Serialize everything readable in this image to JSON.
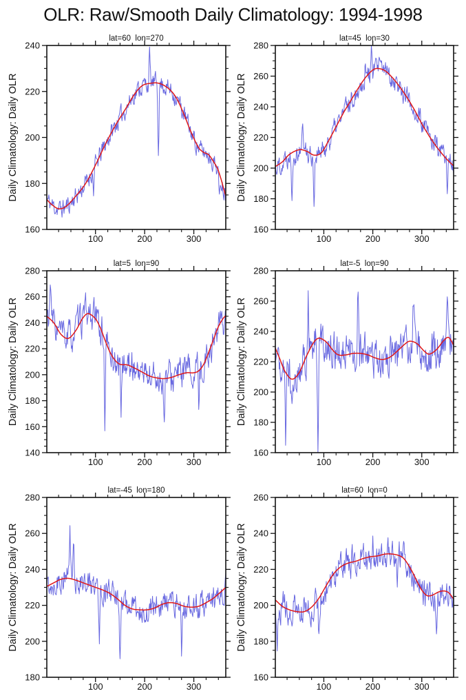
{
  "title": "OLR: Raw/Smooth Daily Climatology: 1994-1998",
  "colors": {
    "raw_line": "#5757dd",
    "smooth_line": "#e01818",
    "axis": "#111111"
  },
  "chart_data": [
    {
      "type": "line",
      "title": "lat=60  lon=270",
      "ylabel": "Daily Climatology: Daily OLR",
      "xlabel": "",
      "xlim": [
        1,
        365
      ],
      "ylim": [
        160,
        240
      ],
      "xticks": [
        100,
        200,
        300
      ],
      "xtick_minor_step": 25,
      "ytick_major_step": 20,
      "ytick_minor_step": 5,
      "grid": false,
      "legend": "none",
      "series": [
        {
          "name": "raw daily climatology",
          "style": "noisy",
          "base": "smooth",
          "noise": {
            "seed": 11,
            "amp": 4.2,
            "ar": 0.45
          },
          "spikes": [
            {
              "x": 96,
              "dy": -9
            },
            {
              "x": 210,
              "dy": 12
            },
            {
              "x": 228,
              "dy": -27
            },
            {
              "x": 352,
              "dy": -13
            }
          ]
        },
        {
          "name": "smoothed climatology",
          "style": "smooth",
          "x": [
            1,
            10,
            25,
            40,
            60,
            80,
            100,
            120,
            140,
            160,
            180,
            195,
            210,
            230,
            250,
            265,
            280,
            295,
            310,
            320,
            330,
            340,
            350,
            365
          ],
          "y": [
            173,
            171,
            169,
            170,
            174.5,
            180,
            188,
            197,
            205,
            212,
            219,
            222.5,
            223.5,
            223.5,
            221,
            217,
            210,
            202,
            195.5,
            193.5,
            192.5,
            189.5,
            185.5,
            174.5
          ]
        }
      ]
    },
    {
      "type": "line",
      "title": "lat=45  lon=30",
      "ylabel": "Daily Climatology: Daily OLR",
      "xlabel": "",
      "xlim": [
        1,
        365
      ],
      "ylim": [
        160,
        280
      ],
      "xticks": [
        100,
        200,
        300
      ],
      "xtick_minor_step": 25,
      "ytick_major_step": 20,
      "ytick_minor_step": 5,
      "grid": false,
      "legend": "none",
      "series": [
        {
          "name": "raw daily climatology",
          "style": "noisy",
          "base": "smooth",
          "noise": {
            "seed": 22,
            "amp": 7,
            "ar": 0.5
          },
          "spikes": [
            {
              "x": 35,
              "dy": -25
            },
            {
              "x": 57,
              "dy": 20
            },
            {
              "x": 80,
              "dy": -30
            },
            {
              "x": 185,
              "dy": 12
            },
            {
              "x": 198,
              "dy": 13
            },
            {
              "x": 352,
              "dy": -15
            }
          ]
        },
        {
          "name": "smoothed climatology",
          "style": "smooth",
          "x": [
            1,
            15,
            30,
            50,
            65,
            80,
            95,
            110,
            125,
            140,
            155,
            170,
            185,
            200,
            210,
            225,
            240,
            255,
            270,
            285,
            300,
            315,
            330,
            345,
            355,
            365
          ],
          "y": [
            201,
            204,
            209,
            212,
            211,
            208.5,
            210,
            218,
            227,
            236,
            244,
            252,
            259,
            264,
            265,
            263.5,
            259,
            253,
            246,
            238,
            229,
            221,
            214,
            208,
            204.5,
            201.5
          ]
        }
      ]
    },
    {
      "type": "line",
      "title": "lat=5  lon=90",
      "ylabel": "Daily Climatology: Daily OLR",
      "xlabel": "",
      "xlim": [
        1,
        365
      ],
      "ylim": [
        140,
        280
      ],
      "xticks": [
        100,
        200,
        300
      ],
      "xtick_minor_step": 25,
      "ytick_major_step": 20,
      "ytick_minor_step": 5,
      "grid": false,
      "legend": "none",
      "series": [
        {
          "name": "raw daily climatology",
          "style": "noisy",
          "base": "smooth",
          "noise": {
            "seed": 33,
            "amp": 12,
            "ar": 0.55
          },
          "spikes": [
            {
              "x": 8,
              "dy": 26
            },
            {
              "x": 119,
              "dy": -62
            },
            {
              "x": 152,
              "dy": -32
            },
            {
              "x": 240,
              "dy": -38
            },
            {
              "x": 310,
              "dy": -24
            }
          ]
        },
        {
          "name": "smoothed climatology",
          "style": "smooth",
          "x": [
            1,
            15,
            30,
            45,
            60,
            75,
            85,
            100,
            110,
            120,
            130,
            140,
            150,
            165,
            180,
            195,
            210,
            225,
            240,
            255,
            270,
            285,
            300,
            310,
            320,
            330,
            340,
            350,
            360,
            365
          ],
          "y": [
            245,
            240,
            231,
            228,
            234,
            244,
            247,
            243,
            236,
            226,
            217,
            211,
            208,
            207.5,
            205,
            202,
            199,
            197.5,
            197,
            198,
            200,
            201.5,
            201.5,
            203,
            208,
            217,
            227,
            237,
            243.5,
            245.5
          ]
        }
      ]
    },
    {
      "type": "line",
      "title": "lat=-5  lon=90",
      "ylabel": "Daily Climatology: Daily OLR",
      "xlabel": "",
      "xlim": [
        1,
        365
      ],
      "ylim": [
        160,
        280
      ],
      "xticks": [
        100,
        200,
        300
      ],
      "xtick_minor_step": 25,
      "ytick_major_step": 20,
      "ytick_minor_step": 5,
      "grid": false,
      "legend": "none",
      "series": [
        {
          "name": "raw daily climatology",
          "style": "noisy",
          "base": "smooth",
          "noise": {
            "seed": 47,
            "amp": 12.5,
            "ar": 0.5
          },
          "spikes": [
            {
              "x": 22,
              "dy": -44
            },
            {
              "x": 68,
              "dy": 35
            },
            {
              "x": 88,
              "dy": -74
            },
            {
              "x": 170,
              "dy": 44
            },
            {
              "x": 283,
              "dy": 25
            },
            {
              "x": 352,
              "dy": 33
            }
          ]
        },
        {
          "name": "smoothed climatology",
          "style": "smooth",
          "x": [
            1,
            10,
            20,
            35,
            50,
            65,
            80,
            90,
            105,
            120,
            130,
            145,
            160,
            175,
            190,
            205,
            220,
            235,
            250,
            265,
            275,
            290,
            305,
            315,
            330,
            345,
            355,
            365
          ],
          "y": [
            229,
            222,
            214,
            208.5,
            213,
            224,
            233,
            235.5,
            233,
            227,
            224.5,
            224.5,
            225.5,
            225.5,
            224.5,
            222.5,
            221.5,
            223,
            227,
            231.5,
            233.5,
            232,
            227,
            225,
            228,
            234,
            236,
            231
          ]
        }
      ]
    },
    {
      "type": "line",
      "title": "lat=-45  lon=180",
      "ylabel": "Daily Climatology: Daily OLR",
      "xlabel": "",
      "xlim": [
        1,
        365
      ],
      "ylim": [
        180,
        280
      ],
      "xticks": [
        100,
        200,
        300
      ],
      "xtick_minor_step": 25,
      "ytick_major_step": 20,
      "ytick_minor_step": 5,
      "grid": false,
      "legend": "none",
      "series": [
        {
          "name": "raw daily climatology",
          "style": "noisy",
          "base": "smooth",
          "noise": {
            "seed": 55,
            "amp": 7,
            "ar": 0.45
          },
          "spikes": [
            {
              "x": 48,
              "dy": 27
            },
            {
              "x": 55,
              "dy": 22
            },
            {
              "x": 108,
              "dy": -28
            },
            {
              "x": 150,
              "dy": -28
            },
            {
              "x": 275,
              "dy": -30
            }
          ]
        },
        {
          "name": "smoothed climatology",
          "style": "smooth",
          "x": [
            1,
            15,
            30,
            45,
            60,
            80,
            100,
            115,
            130,
            145,
            160,
            175,
            190,
            205,
            220,
            235,
            250,
            265,
            280,
            295,
            310,
            325,
            340,
            355,
            365
          ],
          "y": [
            230.5,
            232.5,
            234.5,
            235,
            234,
            232,
            230,
            228.5,
            226.5,
            223.5,
            220,
            218,
            217.5,
            217.5,
            218.5,
            220.5,
            221.5,
            221,
            219.5,
            219,
            219.5,
            221.5,
            224,
            227.5,
            230
          ]
        }
      ]
    },
    {
      "type": "line",
      "title": "lat=60  lon=0",
      "ylabel": "Daily Climatology: Daily OLR",
      "xlabel": "",
      "xlim": [
        1,
        365
      ],
      "ylim": [
        160,
        260
      ],
      "xticks": [
        100,
        200,
        300
      ],
      "xtick_minor_step": 25,
      "ytick_major_step": 20,
      "ytick_minor_step": 5,
      "grid": false,
      "legend": "none",
      "series": [
        {
          "name": "raw daily climatology",
          "style": "noisy",
          "base": "smooth",
          "noise": {
            "seed": 66,
            "amp": 8,
            "ar": 0.5
          },
          "spikes": [
            {
              "x": 5,
              "dy": -28
            },
            {
              "x": 90,
              "dy": -18
            },
            {
              "x": 200,
              "dy": 16
            },
            {
              "x": 250,
              "dy": -24
            },
            {
              "x": 330,
              "dy": -27
            }
          ]
        },
        {
          "name": "smoothed climatology",
          "style": "smooth",
          "x": [
            1,
            15,
            30,
            45,
            60,
            75,
            90,
            105,
            120,
            135,
            150,
            165,
            180,
            195,
            210,
            225,
            240,
            255,
            265,
            280,
            290,
            300,
            310,
            320,
            335,
            345,
            355,
            365
          ],
          "y": [
            203,
            199.5,
            197.5,
            196.5,
            196.5,
            199,
            204,
            211,
            217.5,
            221.5,
            223.5,
            224.5,
            226,
            227,
            227.5,
            228.5,
            228.5,
            227.5,
            225.5,
            219,
            213.5,
            208.5,
            205.5,
            205.5,
            207.5,
            208,
            207,
            203.5
          ]
        }
      ]
    }
  ]
}
